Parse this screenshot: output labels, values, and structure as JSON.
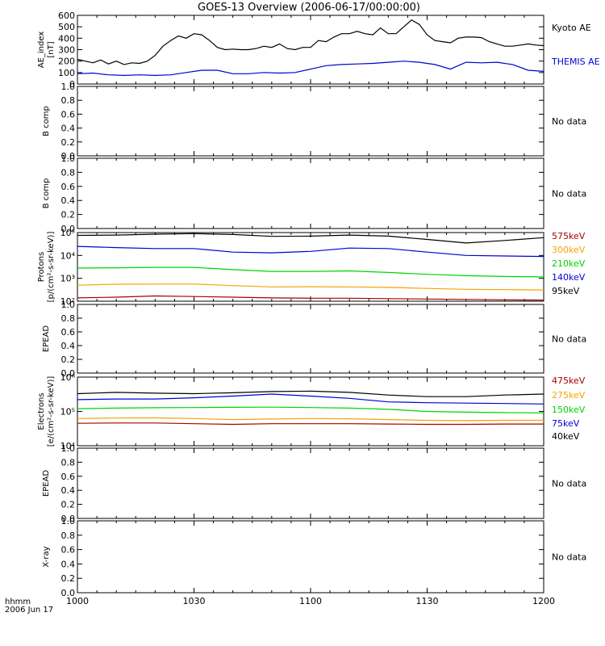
{
  "title": "GOES-13 Overview (2006-06-17/00:00:00)",
  "colors": {
    "black": "#000000",
    "blue": "#0000d4",
    "green": "#00d400",
    "orange": "#f5a300",
    "darkred": "#a80000"
  },
  "bottom_axis": {
    "label_line1": "hhmm",
    "label_line2": "2006 Jun 17",
    "ticks": [
      "1000",
      "1030",
      "1100",
      "1130",
      "1200"
    ]
  },
  "chart_data": [
    {
      "type": "line",
      "ylabel": [
        "AE_index",
        "[nT]"
      ],
      "yticks": [
        "600",
        "500",
        "400",
        "300",
        "200",
        "100",
        "0"
      ],
      "ylim": [
        0,
        600
      ],
      "series": [
        {
          "name": "Kyoto AE",
          "color": "#000000",
          "x": [
            0,
            2,
            4,
            6,
            8,
            10,
            12,
            14,
            16,
            18,
            20,
            22,
            24,
            26,
            28,
            30,
            32,
            34,
            36,
            38,
            40,
            42,
            44,
            46,
            48,
            50,
            52,
            54,
            56,
            58,
            60,
            62,
            64,
            66,
            68,
            70,
            72,
            74,
            76,
            78,
            80,
            82,
            84,
            86,
            88,
            90,
            92,
            94,
            96,
            98,
            100,
            102,
            104,
            106,
            108,
            110,
            112,
            114,
            116,
            118,
            120
          ],
          "values": [
            215,
            200,
            185,
            210,
            175,
            200,
            170,
            185,
            180,
            200,
            250,
            330,
            380,
            420,
            400,
            440,
            430,
            380,
            320,
            300,
            305,
            300,
            300,
            310,
            330,
            320,
            350,
            310,
            300,
            320,
            320,
            380,
            370,
            410,
            440,
            440,
            460,
            440,
            430,
            490,
            440,
            440,
            500,
            560,
            520,
            430,
            380,
            370,
            360,
            400,
            410,
            410,
            405,
            370,
            350,
            330,
            330,
            340,
            350,
            340,
            335
          ]
        },
        {
          "name": "THEMIS AE",
          "color": "#0000d4",
          "x": [
            0,
            4,
            8,
            12,
            16,
            20,
            24,
            28,
            32,
            36,
            40,
            44,
            48,
            52,
            56,
            60,
            64,
            68,
            72,
            76,
            80,
            84,
            88,
            92,
            96,
            100,
            104,
            108,
            112,
            116,
            120
          ],
          "values": [
            90,
            95,
            80,
            75,
            80,
            75,
            80,
            100,
            120,
            120,
            90,
            90,
            100,
            95,
            100,
            130,
            160,
            170,
            175,
            180,
            190,
            200,
            190,
            170,
            130,
            190,
            185,
            190,
            170,
            120,
            110
          ]
        }
      ],
      "legend": [
        {
          "label": "Kyoto AE",
          "color": "#000000"
        },
        {
          "label": "THEMIS AE",
          "color": "#0000d4"
        }
      ]
    },
    {
      "type": "line",
      "ylabel": [
        "B comp"
      ],
      "yticks": [
        "1.0",
        "0.8",
        "0.6",
        "0.4",
        "0.2",
        "0.0"
      ],
      "ylim": [
        0,
        1
      ],
      "series": [],
      "legend": [
        {
          "label": "No data",
          "color": "#000000"
        }
      ]
    },
    {
      "type": "line",
      "ylabel": [
        "B comp"
      ],
      "yticks": [
        "1.0",
        "0.8",
        "0.6",
        "0.4",
        "0.2",
        "0.0"
      ],
      "ylim": [
        0,
        1
      ],
      "series": [],
      "legend": [
        {
          "label": "No data",
          "color": "#000000"
        }
      ]
    },
    {
      "type": "line",
      "log_scale": true,
      "ylabel": [
        "Protons",
        "[p/(cm²-s-sr-keV)]"
      ],
      "yticks": [
        "10⁵",
        "10⁴",
        "10³",
        "10²"
      ],
      "ylim": [
        100,
        100000
      ],
      "series": [
        {
          "name": "95keV",
          "color": "#000000",
          "x": [
            0,
            10,
            20,
            30,
            40,
            50,
            60,
            70,
            80,
            90,
            100,
            110,
            120
          ],
          "values": [
            75000,
            78000,
            85000,
            90000,
            82000,
            68000,
            70000,
            78000,
            70000,
            50000,
            35000,
            45000,
            60000
          ]
        },
        {
          "name": "140keV",
          "color": "#0000d4",
          "x": [
            0,
            10,
            20,
            30,
            40,
            50,
            60,
            70,
            80,
            90,
            100,
            110,
            120
          ],
          "values": [
            25000,
            22000,
            20000,
            20000,
            14000,
            13000,
            15000,
            21000,
            20000,
            14000,
            10000,
            9500,
            9000
          ]
        },
        {
          "name": "210keV",
          "color": "#00d400",
          "x": [
            0,
            10,
            20,
            30,
            40,
            50,
            60,
            70,
            80,
            90,
            100,
            110,
            120
          ],
          "values": [
            2800,
            2900,
            3000,
            3000,
            2400,
            2000,
            2000,
            2100,
            1800,
            1500,
            1300,
            1200,
            1150
          ]
        },
        {
          "name": "300keV",
          "color": "#f5a300",
          "x": [
            0,
            10,
            20,
            30,
            40,
            50,
            60,
            70,
            80,
            90,
            100,
            110,
            120
          ],
          "values": [
            500,
            550,
            560,
            560,
            480,
            420,
            430,
            420,
            400,
            360,
            330,
            320,
            310
          ]
        },
        {
          "name": "575keV",
          "color": "#a80000",
          "x": [
            0,
            10,
            20,
            30,
            40,
            50,
            60,
            70,
            80,
            90,
            100,
            110,
            120
          ],
          "values": [
            140,
            150,
            170,
            160,
            150,
            140,
            135,
            135,
            130,
            125,
            120,
            115,
            112
          ]
        }
      ],
      "legend": [
        {
          "label": "575keV",
          "color": "#a80000"
        },
        {
          "label": "300keV",
          "color": "#f5a300"
        },
        {
          "label": "210keV",
          "color": "#00d400"
        },
        {
          "label": "140keV",
          "color": "#0000d4"
        },
        {
          "label": "95keV",
          "color": "#000000"
        }
      ]
    },
    {
      "type": "line",
      "ylabel": [
        "EPEAD"
      ],
      "yticks": [
        "1.0",
        "0.8",
        "0.6",
        "0.4",
        "0.2",
        "0.0"
      ],
      "ylim": [
        0,
        1
      ],
      "series": [],
      "legend": [
        {
          "label": "No data",
          "color": "#000000"
        }
      ]
    },
    {
      "type": "line",
      "log_scale": true,
      "ylabel": [
        "Electrons",
        "[e/(cm²-s-sr-keV)]"
      ],
      "yticks": [
        "10⁶",
        "10⁵",
        "10⁴"
      ],
      "ylim": [
        10000,
        1000000
      ],
      "series": [
        {
          "name": "40keV",
          "color": "#000000",
          "x": [
            0,
            10,
            20,
            30,
            40,
            50,
            60,
            70,
            80,
            90,
            100,
            110,
            120
          ],
          "values": [
            330000,
            360000,
            340000,
            330000,
            350000,
            380000,
            390000,
            360000,
            300000,
            270000,
            270000,
            300000,
            320000
          ]
        },
        {
          "name": "75keV",
          "color": "#0000d4",
          "x": [
            0,
            10,
            20,
            30,
            40,
            50,
            60,
            70,
            80,
            90,
            100,
            110,
            120
          ],
          "values": [
            220000,
            230000,
            230000,
            250000,
            280000,
            320000,
            280000,
            240000,
            190000,
            180000,
            175000,
            170000,
            165000
          ]
        },
        {
          "name": "150keV",
          "color": "#00d400",
          "x": [
            0,
            10,
            20,
            30,
            40,
            50,
            60,
            70,
            80,
            90,
            100,
            110,
            120
          ],
          "values": [
            120000,
            125000,
            128000,
            130000,
            132000,
            133000,
            130000,
            125000,
            115000,
            100000,
            95000,
            92000,
            90000
          ]
        },
        {
          "name": "275keV",
          "color": "#f5a300",
          "x": [
            0,
            10,
            20,
            30,
            40,
            50,
            60,
            70,
            80,
            90,
            100,
            110,
            120
          ],
          "values": [
            62000,
            64000,
            65000,
            62000,
            58000,
            60000,
            62000,
            61000,
            58000,
            55000,
            54000,
            55000,
            55000
          ]
        },
        {
          "name": "475keV",
          "color": "#a80000",
          "x": [
            0,
            10,
            20,
            30,
            40,
            50,
            60,
            70,
            80,
            90,
            100,
            110,
            120
          ],
          "values": [
            45000,
            46000,
            46000,
            44000,
            42000,
            44000,
            44000,
            44000,
            43000,
            42000,
            42000,
            43000,
            43000
          ]
        }
      ],
      "legend": [
        {
          "label": "475keV",
          "color": "#a80000"
        },
        {
          "label": "275keV",
          "color": "#f5a300"
        },
        {
          "label": "150keV",
          "color": "#00d400"
        },
        {
          "label": "75keV",
          "color": "#0000d4"
        },
        {
          "label": "40keV",
          "color": "#000000"
        }
      ]
    },
    {
      "type": "line",
      "ylabel": [
        "EPEAD"
      ],
      "yticks": [
        "1.0",
        "0.8",
        "0.6",
        "0.4",
        "0.2",
        "0.0"
      ],
      "ylim": [
        0,
        1
      ],
      "series": [],
      "legend": [
        {
          "label": "No data",
          "color": "#000000"
        }
      ]
    },
    {
      "type": "line",
      "ylabel": [
        "X-ray"
      ],
      "yticks": [
        "1.0",
        "0.8",
        "0.6",
        "0.4",
        "0.2",
        "0.0"
      ],
      "ylim": [
        0,
        1
      ],
      "series": [],
      "legend": [
        {
          "label": "No data",
          "color": "#000000"
        }
      ]
    }
  ]
}
